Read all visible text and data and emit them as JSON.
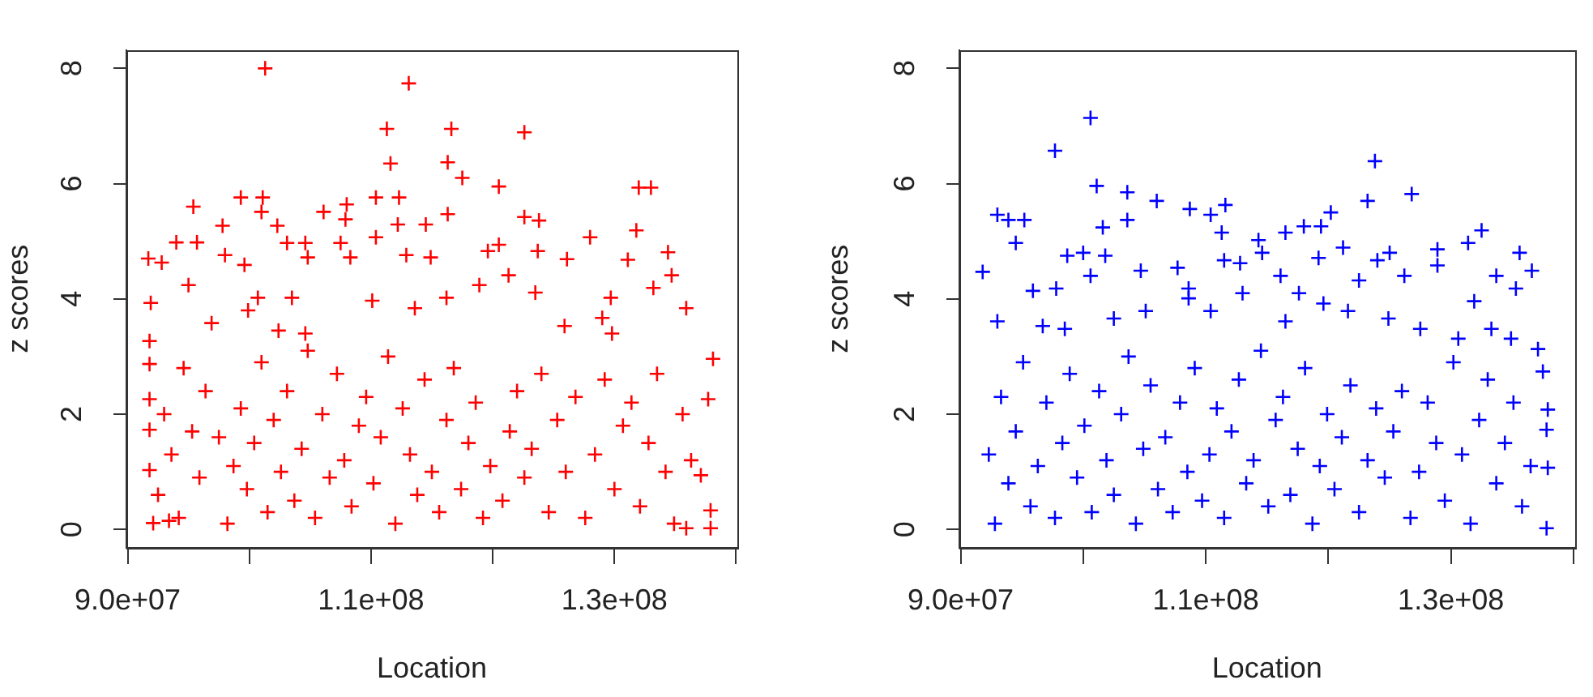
{
  "chart_data": [
    {
      "type": "scatter",
      "xlabel": "Location",
      "ylabel": "z scores",
      "xlim": [
        89900000,
        140100000
      ],
      "ylim": [
        -0.32,
        8.32
      ],
      "xticks": [
        {
          "value": 90000000,
          "label": "9.0e+07"
        },
        {
          "value": 100000000,
          "label": null
        },
        {
          "value": 110000000,
          "label": "1.1e+08"
        },
        {
          "value": 120000000,
          "label": null
        },
        {
          "value": 130000000,
          "label": "1.3e+08"
        },
        {
          "value": 140000000,
          "label": null
        }
      ],
      "yticks": [
        0,
        2,
        4,
        6,
        8
      ],
      "marker": "cross",
      "grid": false,
      "legend": false,
      "color": "#ff0000",
      "x": [
        101300000,
        113100000,
        111300000,
        116600000,
        122600000,
        111600000,
        116300000,
        117500000,
        120500000,
        132000000,
        133000000,
        95400000,
        99300000,
        101100000,
        101000000,
        106100000,
        108000000,
        107900000,
        110400000,
        112300000,
        112200000,
        114500000,
        116300000,
        122600000,
        123800000,
        110400000,
        128000000,
        131800000,
        97800000,
        102300000,
        94000000,
        95700000,
        91700000,
        92800000,
        98000000,
        99600000,
        103100000,
        104600000,
        104800000,
        107500000,
        108300000,
        112900000,
        114900000,
        119600000,
        120500000,
        123700000,
        126100000,
        131100000,
        134400000,
        134700000,
        133200000,
        135900000,
        138100000,
        137700000,
        137100000,
        137900000,
        137900000,
        135900000,
        91900000,
        91800000,
        91800000,
        91800000,
        91800000,
        91800000,
        92100000,
        93400000,
        95000000,
        96900000,
        99900000,
        100700000,
        102400000,
        104600000,
        103500000,
        110100000,
        113600000,
        116200000,
        118900000,
        121300000,
        123500000,
        125900000,
        129700000,
        129800000,
        129000000,
        92500000,
        93000000,
        93600000,
        94200000,
        94600000,
        95300000,
        95900000,
        96400000,
        97500000,
        98200000,
        98700000,
        99300000,
        99800000,
        100400000,
        101000000,
        101500000,
        102000000,
        102600000,
        103100000,
        103700000,
        104300000,
        104800000,
        105400000,
        106000000,
        106600000,
        107200000,
        107800000,
        108400000,
        109000000,
        109600000,
        110200000,
        110800000,
        111400000,
        112000000,
        112600000,
        113200000,
        113800000,
        114400000,
        115000000,
        115600000,
        116200000,
        116800000,
        117400000,
        118000000,
        118600000,
        119200000,
        119800000,
        120800000,
        121400000,
        122000000,
        122600000,
        123200000,
        124000000,
        124600000,
        125300000,
        126000000,
        126800000,
        127600000,
        128400000,
        129200000,
        130000000,
        130700000,
        131400000,
        132100000,
        132800000,
        133500000,
        134200000,
        134900000,
        135600000,
        136300000
      ],
      "values": [
        8.0,
        7.74,
        6.95,
        6.95,
        6.89,
        6.35,
        6.37,
        6.1,
        5.95,
        5.93,
        5.93,
        5.6,
        5.76,
        5.76,
        5.51,
        5.51,
        5.64,
        5.38,
        5.76,
        5.76,
        5.29,
        5.29,
        5.47,
        5.42,
        5.36,
        5.07,
        5.07,
        5.19,
        5.27,
        5.27,
        4.98,
        4.98,
        4.7,
        4.63,
        4.76,
        4.59,
        4.97,
        4.97,
        4.72,
        4.97,
        4.72,
        4.76,
        4.72,
        4.83,
        4.94,
        4.83,
        4.69,
        4.68,
        4.81,
        4.41,
        4.19,
        3.84,
        2.96,
        2.26,
        0.94,
        0.33,
        0.02,
        0.02,
        3.93,
        3.27,
        2.87,
        2.26,
        1.73,
        1.03,
        0.11,
        0.15,
        4.24,
        3.58,
        3.8,
        4.02,
        3.45,
        3.4,
        4.02,
        3.97,
        3.84,
        4.02,
        4.24,
        4.41,
        4.11,
        3.53,
        4.02,
        3.4,
        3.67,
        0.6,
        2.0,
        1.3,
        0.2,
        2.8,
        1.7,
        0.9,
        2.4,
        1.6,
        0.1,
        1.1,
        2.1,
        0.7,
        1.5,
        2.9,
        0.3,
        1.9,
        1.0,
        2.4,
        0.5,
        1.4,
        3.1,
        0.2,
        2.0,
        0.9,
        2.7,
        1.2,
        0.4,
        1.8,
        2.3,
        0.8,
        1.6,
        3.0,
        0.1,
        2.1,
        1.3,
        0.6,
        2.6,
        1.0,
        0.3,
        1.9,
        2.8,
        0.7,
        1.5,
        2.2,
        0.2,
        1.1,
        0.5,
        1.7,
        2.4,
        0.9,
        1.4,
        2.7,
        0.3,
        1.9,
        1.0,
        2.3,
        0.2,
        1.3,
        2.6,
        0.7,
        1.8,
        2.2,
        0.4,
        1.5,
        2.7,
        1.0,
        0.1,
        2.0,
        1.2
      ]
    },
    {
      "type": "scatter",
      "xlabel": "Location",
      "ylabel": "z scores",
      "xlim": [
        89900000,
        140100000
      ],
      "ylim": [
        -0.32,
        8.32
      ],
      "xticks": [
        {
          "value": 90000000,
          "label": "9.0e+07"
        },
        {
          "value": 100000000,
          "label": null
        },
        {
          "value": 110000000,
          "label": "1.1e+08"
        },
        {
          "value": 120000000,
          "label": null
        },
        {
          "value": 130000000,
          "label": "1.3e+08"
        },
        {
          "value": 140000000,
          "label": null
        }
      ],
      "yticks": [
        0,
        2,
        4,
        6,
        8
      ],
      "marker": "cross",
      "grid": false,
      "legend": false,
      "color": "#0000ff",
      "x": [
        100600000,
        97700000,
        101100000,
        123800000,
        126800000,
        91800000,
        93000000,
        93900000,
        95200000,
        94500000,
        103600000,
        103600000,
        106000000,
        101600000,
        108700000,
        110400000,
        111600000,
        111300000,
        114300000,
        116500000,
        118000000,
        119400000,
        120200000,
        123200000,
        125000000,
        128900000,
        131400000,
        132500000,
        133700000,
        135600000,
        136600000,
        137100000,
        137500000,
        137900000,
        137800000,
        137900000,
        137800000,
        98700000,
        100000000,
        101800000,
        95900000,
        97800000,
        100600000,
        104700000,
        107700000,
        108600000,
        111500000,
        112800000,
        114600000,
        116100000,
        119200000,
        121200000,
        122500000,
        124000000,
        126200000,
        131900000,
        135300000,
        128900000,
        93000000,
        96700000,
        98500000,
        102500000,
        105100000,
        108600000,
        110400000,
        113000000,
        116500000,
        117600000,
        119600000,
        121600000,
        124900000,
        127500000,
        130600000,
        133300000,
        134900000,
        92300000,
        92800000,
        93300000,
        93900000,
        94500000,
        95100000,
        95700000,
        96300000,
        97000000,
        97700000,
        98300000,
        98900000,
        99500000,
        100100000,
        100700000,
        101300000,
        101900000,
        102500000,
        103100000,
        103700000,
        104300000,
        104900000,
        105500000,
        106100000,
        106700000,
        107300000,
        107900000,
        108500000,
        109100000,
        109700000,
        110300000,
        110900000,
        111500000,
        112100000,
        112700000,
        113300000,
        113900000,
        114500000,
        115100000,
        115700000,
        116300000,
        116900000,
        117500000,
        118100000,
        118700000,
        119300000,
        119900000,
        120500000,
        121100000,
        121800000,
        122500000,
        123200000,
        123900000,
        124600000,
        125300000,
        126000000,
        126700000,
        127400000,
        128100000,
        128800000,
        129500000,
        130200000,
        130900000,
        131600000,
        132300000,
        133000000,
        133700000,
        134400000,
        135100000,
        135800000,
        136500000
      ],
      "values": [
        7.14,
        6.57,
        5.96,
        6.39,
        5.82,
        4.47,
        5.46,
        5.37,
        5.37,
        4.97,
        5.85,
        5.37,
        5.7,
        5.24,
        5.56,
        5.46,
        5.63,
        5.15,
        5.02,
        5.15,
        5.26,
        5.26,
        5.5,
        5.7,
        4.8,
        4.86,
        4.97,
        5.19,
        4.4,
        4.8,
        4.49,
        3.13,
        2.74,
        2.08,
        1.73,
        1.07,
        0.02,
        4.75,
        4.8,
        4.75,
        4.14,
        4.18,
        4.4,
        4.49,
        4.54,
        4.18,
        4.67,
        4.62,
        4.8,
        4.4,
        4.71,
        4.89,
        4.32,
        4.67,
        4.4,
        3.96,
        4.18,
        4.58,
        3.61,
        3.53,
        3.48,
        3.66,
        3.79,
        4.01,
        3.79,
        4.1,
        3.61,
        4.1,
        3.92,
        3.79,
        3.66,
        3.48,
        3.31,
        3.48,
        3.31,
        1.3,
        0.1,
        2.3,
        0.8,
        1.7,
        2.9,
        0.4,
        1.1,
        2.2,
        0.2,
        1.5,
        2.7,
        0.9,
        1.8,
        0.3,
        2.4,
        1.2,
        0.6,
        2.0,
        3.0,
        0.1,
        1.4,
        2.5,
        0.7,
        1.6,
        0.3,
        2.2,
        1.0,
        2.8,
        0.5,
        1.3,
        2.1,
        0.2,
        1.7,
        2.6,
        0.8,
        1.2,
        3.1,
        0.4,
        1.9,
        2.3,
        0.6,
        1.4,
        2.8,
        0.1,
        1.1,
        2.0,
        0.7,
        1.6,
        2.5,
        0.3,
        1.2,
        2.1,
        0.9,
        1.7,
        2.4,
        0.2,
        1.0,
        2.2,
        1.5,
        0.5,
        2.9,
        1.3,
        0.1,
        1.9,
        2.6,
        0.8,
        1.5,
        2.2,
        0.4,
        1.1
      ]
    }
  ]
}
